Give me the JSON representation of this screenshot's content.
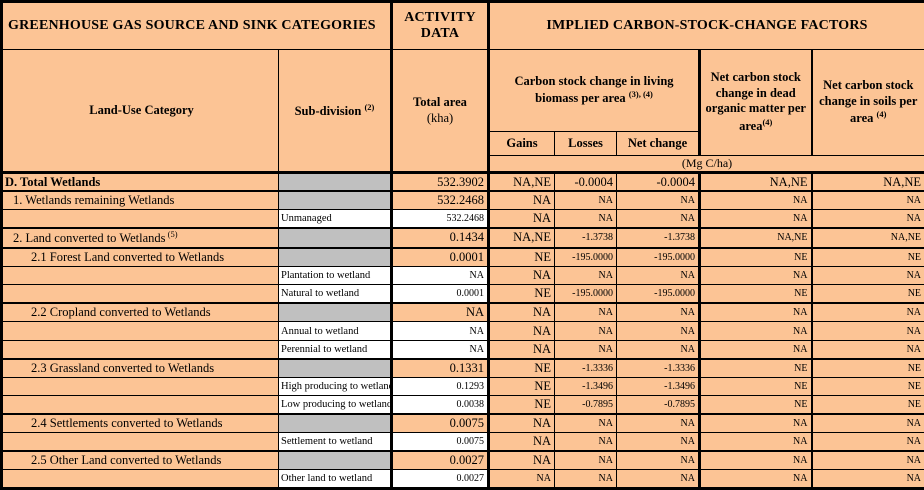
{
  "title_row": {
    "categories": "GREENHOUSE GAS SOURCE AND SINK CATEGORIES",
    "activity": "ACTIVITY DATA",
    "implied": "IMPLIED CARBON-STOCK-CHANGE FACTORS"
  },
  "columns": {
    "land_use": "Land-Use Category",
    "subdivision": "Sub-division",
    "subdivision_sup": "(2)",
    "total_area": "Total area",
    "total_area_unit": "(kha)",
    "biomass": "Carbon stock change in living biomass per area",
    "biomass_sup": "(3), (4)",
    "gains": "Gains",
    "losses": "Losses",
    "net_change": "Net change",
    "dead_organic": "Net carbon stock change in dead organic matter per area",
    "dead_organic_sup": "(4)",
    "soils": "Net carbon stock change in soils per area",
    "soils_sup": "(4)",
    "units": "(Mg C/ha)"
  },
  "colors": {
    "accent_orange": "#FCC495",
    "gray_cell": "#C0C0C0",
    "white_cell": "#FFFFFF",
    "border_black": "#000000"
  },
  "rows": [
    {
      "type": "category",
      "label": "D. Total Wetlands",
      "indent": 0,
      "bold": true,
      "big": true,
      "area": "532.3902",
      "gains": "NA,NE",
      "losses": "-0.0004",
      "net": "-0.0004",
      "dom": "NA,NE",
      "soils": "NA,NE"
    },
    {
      "type": "category",
      "label": "1. Wetlands remaining Wetlands",
      "indent": 1,
      "area": "532.2468",
      "gains": "NA",
      "losses": "NA",
      "net": "NA",
      "dom": "NA",
      "soils": "NA"
    },
    {
      "type": "sub",
      "label": "Unmanaged",
      "area": "532.2468",
      "gains": "NA",
      "losses": "NA",
      "net": "NA",
      "dom": "NA",
      "soils": "NA"
    },
    {
      "type": "category",
      "label": "2. Land converted to Wetlands",
      "sup": "(5)",
      "indent": 1,
      "area": "0.1434",
      "gains": "NA,NE",
      "losses": "-1.3738",
      "net": "-1.3738",
      "dom": "NA,NE",
      "soils": "NA,NE"
    },
    {
      "type": "category",
      "label": "2.1 Forest Land converted to Wetlands",
      "indent": 2,
      "area": "0.0001",
      "gains": "NE",
      "losses": "-195.0000",
      "net": "-195.0000",
      "dom": "NE",
      "soils": "NE"
    },
    {
      "type": "sub",
      "label": "Plantation to wetland",
      "area": "NA",
      "gains": "NA",
      "losses": "NA",
      "net": "NA",
      "dom": "NA",
      "soils": "NA"
    },
    {
      "type": "sub",
      "label": "Natural to wetland",
      "area": "0.0001",
      "gains": "NE",
      "losses": "-195.0000",
      "net": "-195.0000",
      "dom": "NE",
      "soils": "NE"
    },
    {
      "type": "category",
      "label": "2.2 Cropland converted to Wetlands",
      "indent": 2,
      "area": "NA",
      "gains": "NA",
      "losses": "NA",
      "net": "NA",
      "dom": "NA",
      "soils": "NA"
    },
    {
      "type": "sub",
      "label": "Annual to wetland",
      "area": "NA",
      "gains": "NA",
      "losses": "NA",
      "net": "NA",
      "dom": "NA",
      "soils": "NA"
    },
    {
      "type": "sub",
      "label": "Perennial to wetland",
      "area": "NA",
      "gains": "NA",
      "losses": "NA",
      "net": "NA",
      "dom": "NA",
      "soils": "NA"
    },
    {
      "type": "category",
      "label": "2.3 Grassland converted to Wetlands",
      "indent": 2,
      "area": "0.1331",
      "gains": "NE",
      "losses": "-1.3336",
      "net": "-1.3336",
      "dom": "NE",
      "soils": "NE"
    },
    {
      "type": "sub",
      "label": "High producing to wetland",
      "area": "0.1293",
      "gains": "NE",
      "losses": "-1.3496",
      "net": "-1.3496",
      "dom": "NE",
      "soils": "NE"
    },
    {
      "type": "sub",
      "label": "Low producing to wetland",
      "area": "0.0038",
      "gains": "NE",
      "losses": "-0.7895",
      "net": "-0.7895",
      "dom": "NE",
      "soils": "NE"
    },
    {
      "type": "category",
      "label": "2.4 Settlements converted to Wetlands",
      "indent": 2,
      "area": "0.0075",
      "gains": "NA",
      "losses": "NA",
      "net": "NA",
      "dom": "NA",
      "soils": "NA"
    },
    {
      "type": "sub",
      "label": "Settlement to wetland",
      "area": "0.0075",
      "gains": "NA",
      "losses": "NA",
      "net": "NA",
      "dom": "NA",
      "soils": "NA"
    },
    {
      "type": "category",
      "label": "2.5 Other Land converted to Wetlands",
      "indent": 2,
      "area": "0.0027",
      "gains": "NA",
      "losses": "NA",
      "net": "NA",
      "dom": "NA",
      "soils": "NA"
    },
    {
      "type": "sub",
      "label": "Other land to wetland",
      "area": "0.0027",
      "gains": "NA",
      "losses": "NA",
      "net": "NA",
      "dom": "NA",
      "soils": "NA",
      "small_gains": true
    }
  ]
}
